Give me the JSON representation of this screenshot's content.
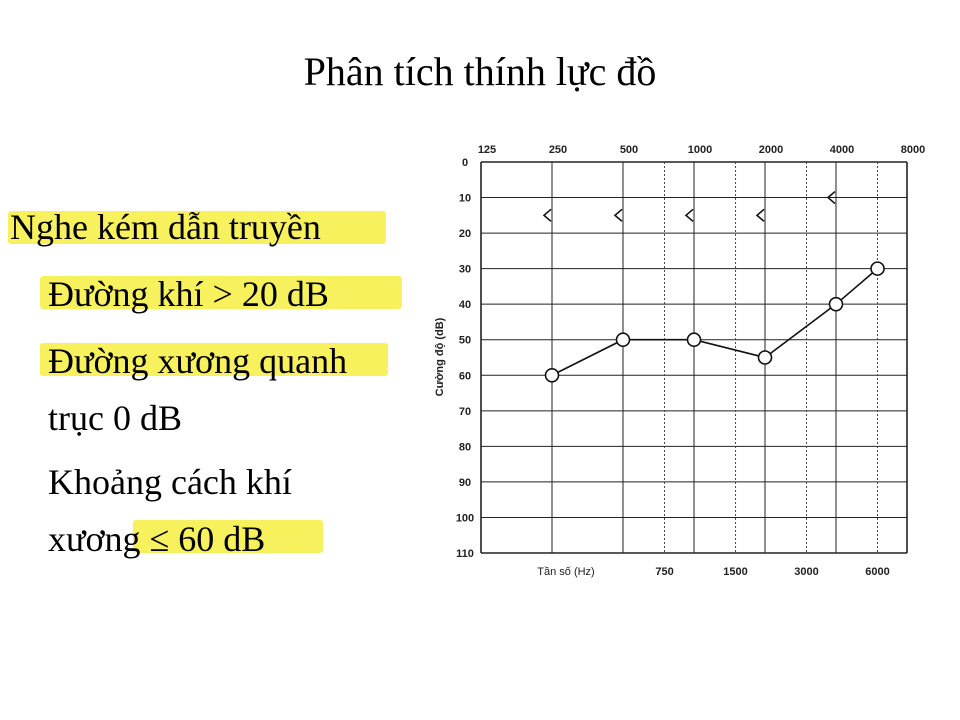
{
  "slide": {
    "title": "Phân tích thính lực đồ",
    "bullets": [
      "Nghe kém dẫn truyền",
      "Đường khí > 20 dB",
      "Đường xương quanh",
      "trục 0 dB",
      "Khoảng cách khí",
      "xương ≤ 60 dB"
    ],
    "highlight_color": "#f5ee3a"
  },
  "chart_data": {
    "type": "line",
    "xlabel": "Tần số (Hz)",
    "ylabel": "Cường độ (dB)",
    "x_ticks_top": [
      "125",
      "250",
      "500",
      "1000",
      "2000",
      "4000",
      "8000"
    ],
    "x_ticks_bottom": [
      "750",
      "1500",
      "3000",
      "6000"
    ],
    "y_ticks": [
      "0",
      "10",
      "20",
      "30",
      "40",
      "50",
      "60",
      "70",
      "80",
      "90",
      "100",
      "110"
    ],
    "ylim": [
      0,
      110
    ],
    "y_inverted": true,
    "grid": true,
    "series": [
      {
        "marker": "circle",
        "x": [
          250,
          500,
          1000,
          2000,
          4000,
          6000
        ],
        "y": [
          60,
          50,
          50,
          55,
          40,
          30
        ]
      },
      {
        "marker": "<",
        "x": [
          250,
          500,
          1000,
          2000,
          4000
        ],
        "y": [
          15,
          15,
          15,
          15,
          10
        ]
      }
    ]
  }
}
